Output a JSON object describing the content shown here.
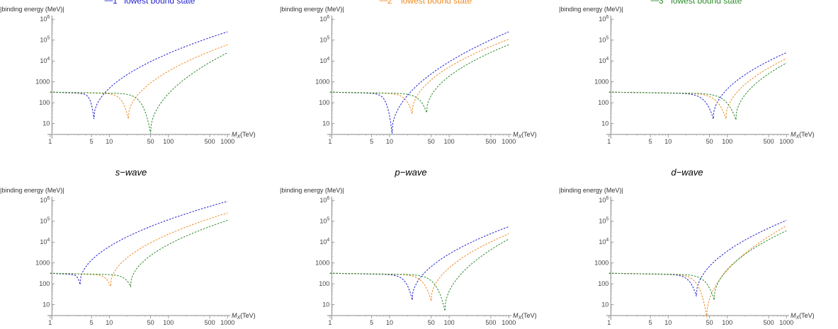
{
  "legend": [
    {
      "dash": "−−",
      "num": "1",
      "sup": "st",
      "text": "lowest bound state",
      "color": "#1f1fd2"
    },
    {
      "dash": "−−",
      "num": "2",
      "sup": "nd",
      "text": "lowest bound state",
      "color": "#f08a1e"
    },
    {
      "dash": "−−",
      "num": "3",
      "sup": "rd",
      "text": "lowest bound state",
      "color": "#2a8a2a"
    }
  ],
  "wave_labels": [
    "s−wave",
    "p−wave",
    "d−wave"
  ],
  "colors": {
    "state1": "#1f1fd2",
    "state2": "#f08a1e",
    "state3": "#2a8a2a",
    "axis": "#888888"
  },
  "chart_data": [
    {
      "type": "line",
      "row": "top",
      "column": "s−wave",
      "ylabel": "|binding energy (MeV)|",
      "xlabel": "M_X (TeV)",
      "xscale": "log",
      "yscale": "log",
      "xlim": [
        0.9,
        1050
      ],
      "ylim": [
        3,
        1500000
      ],
      "xticks": [
        "1",
        "5",
        "10",
        "50",
        "100",
        "500",
        "1000"
      ],
      "yticks": [
        "10",
        "100",
        "1000",
        "10^4",
        "10^5",
        "10^6"
      ],
      "plateau": 320,
      "dip": [
        5.5,
        21,
        50
      ],
      "dipmin": [
        20,
        20,
        4
      ],
      "end": [
        250000,
        60000,
        25000
      ]
    },
    {
      "type": "line",
      "row": "top",
      "column": "p−wave",
      "ylabel": "|binding energy (MeV)|",
      "xlabel": "M_X (TeV)",
      "xscale": "log",
      "yscale": "log",
      "xlim": [
        0.9,
        1050
      ],
      "ylim": [
        3,
        1500000
      ],
      "xticks": [
        "1",
        "5",
        "10",
        "50",
        "100",
        "500",
        "1000"
      ],
      "yticks": [
        "10",
        "100",
        "1000",
        "10^4",
        "10^5",
        "10^6"
      ],
      "plateau": 320,
      "dip": [
        11,
        24,
        42
      ],
      "dipmin": [
        4,
        35,
        40
      ],
      "end": [
        250000,
        110000,
        60000
      ]
    },
    {
      "type": "line",
      "row": "top",
      "column": "d−wave",
      "ylabel": "|binding energy (MeV)|",
      "xlabel": "M_X (TeV)",
      "xscale": "log",
      "yscale": "log",
      "xlim": [
        0.9,
        1050
      ],
      "ylim": [
        3,
        1500000
      ],
      "xticks": [
        "1",
        "5",
        "10",
        "50",
        "100",
        "500",
        "1000"
      ],
      "yticks": [
        "10",
        "100",
        "1000",
        "10^4",
        "10^5",
        "10^6"
      ],
      "plateau": 320,
      "dip": [
        58,
        95,
        140
      ],
      "dipmin": [
        20,
        20,
        18
      ],
      "end": [
        25000,
        13000,
        8000
      ]
    },
    {
      "type": "line",
      "row": "bottom",
      "column": "s−wave",
      "ylabel": "|binding energy (MeV)|",
      "xlabel": "M_X (TeV)",
      "xscale": "log",
      "yscale": "log",
      "xlim": [
        0.9,
        1050
      ],
      "ylim": [
        3,
        1500000
      ],
      "xticks": [
        "1",
        "5",
        "10",
        "50",
        "100",
        "500",
        "1000"
      ],
      "yticks": [
        "10",
        "100",
        "1000",
        "10^4",
        "10^5",
        "10^6"
      ],
      "plateau": 320,
      "dip": [
        3.2,
        10.5,
        23
      ],
      "dipmin": [
        110,
        90,
        90
      ],
      "end": [
        900000,
        250000,
        110000
      ]
    },
    {
      "type": "line",
      "row": "bottom",
      "column": "p−wave",
      "ylabel": "|binding energy (MeV)|",
      "xlabel": "M_X (TeV)",
      "xscale": "log",
      "yscale": "log",
      "xlim": [
        0.9,
        1050
      ],
      "ylim": [
        3,
        1500000
      ],
      "xticks": [
        "1",
        "5",
        "10",
        "50",
        "100",
        "500",
        "1000"
      ],
      "yticks": [
        "10",
        "100",
        "1000",
        "10^4",
        "10^5",
        "10^6"
      ],
      "plateau": 320,
      "dip": [
        24,
        50,
        85
      ],
      "dipmin": [
        20,
        18,
        6
      ],
      "end": [
        55000,
        25000,
        14000
      ]
    },
    {
      "type": "line",
      "row": "bottom",
      "column": "d−wave",
      "ylabel": "|binding energy (MeV)|",
      "xlabel": "M_X (TeV)",
      "xscale": "log",
      "yscale": "log",
      "xlim": [
        0.9,
        1050
      ],
      "ylim": [
        3,
        1500000
      ],
      "xticks": [
        "1",
        "5",
        "10",
        "50",
        "100",
        "500",
        "1000"
      ],
      "yticks": [
        "10",
        "100",
        "1000",
        "10^4",
        "10^5",
        "10^6"
      ],
      "plateau": 320,
      "dip": [
        30,
        45,
        60
      ],
      "dipmin": [
        30,
        3,
        20
      ],
      "end": [
        110000,
        60000,
        35000
      ]
    }
  ]
}
